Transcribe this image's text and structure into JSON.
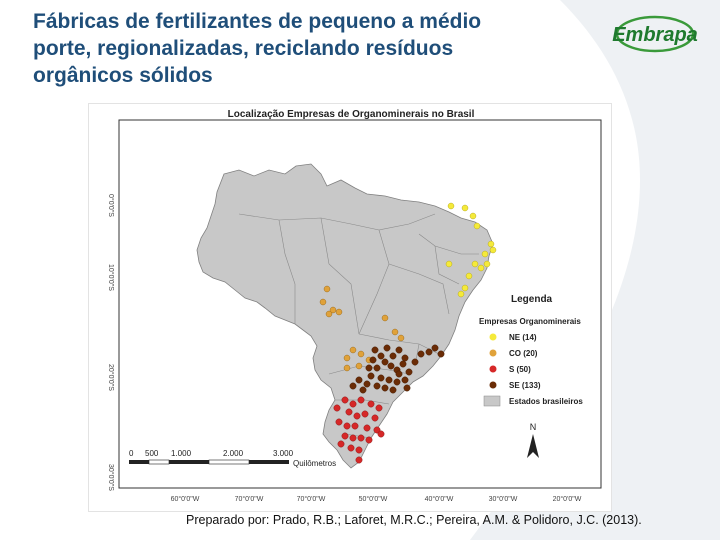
{
  "slide": {
    "title_lines": [
      "Fábricas de fertilizantes de pequeno a médio",
      "porte, regionalizadas, reciclando resíduos",
      "orgânicos sólidos"
    ],
    "logo_text": "Embrapa",
    "credit": "Preparado por: Prado, R.B.; Laforet, M.R.C.; Pereira, A.M. & Polidoro, J.C. (2013)."
  },
  "map": {
    "title": "Localização Empresas de Organominerais no Brasil",
    "legend_title": "Legenda",
    "legend_subtitle": "Empresas Organominerais",
    "legend_items": [
      {
        "label": "NE (14)",
        "color": "#f5ea3a"
      },
      {
        "label": "CO (20)",
        "color": "#e0a23a"
      },
      {
        "label": "S (50)",
        "color": "#d62828"
      },
      {
        "label": "SE (133)",
        "color": "#6b2c06"
      }
    ],
    "states_label": "Estados brasileiros",
    "states_color": "#c8c8c8",
    "north_label": "N",
    "scale_labels": [
      "0",
      "500",
      "1.000",
      "2.000",
      "3.000"
    ],
    "scale_unit": "Quilômetros",
    "lat_labels": [
      "0°0'0\"S",
      "10°0'0\"S",
      "20°0'0\"S",
      "30°0'0\"S"
    ],
    "lon_labels": [
      "60°0'0\"W",
      "70°0'0\"W",
      "50°0'0\"W",
      "40°0'0\"W",
      "30°0'0\"W",
      "20°0'0\"W"
    ]
  }
}
